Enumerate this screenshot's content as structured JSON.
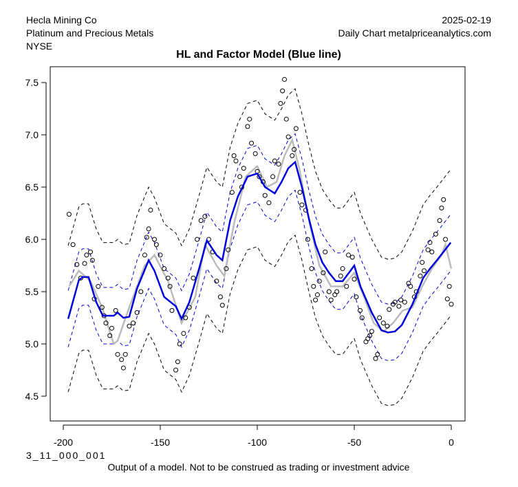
{
  "header": {
    "left": [
      "Hecla Mining Co",
      "Platinum and Precious Metals",
      "NYSE"
    ],
    "right": [
      "2025-02-19",
      "Daily Chart metalpriceanalytics.com"
    ]
  },
  "footer": {
    "code": "3_11_000_001",
    "note": "Output of a model. Not to be construed as trading or investment advice"
  },
  "colors": {
    "model": "#0000DD",
    "smooth": "#BBBBBB",
    "outer": "#000000",
    "points": "#000000"
  },
  "chart_data": {
    "type": "line",
    "title": "HL and Factor Model (Blue line)",
    "xlabel": "",
    "ylabel": "",
    "xlim": [
      -203,
      3
    ],
    "ylim": [
      4.3,
      7.75
    ],
    "xticks": [
      -200,
      -150,
      -100,
      -50,
      0
    ],
    "xtick_labels": [
      "-200",
      "-150",
      "-100",
      "-50",
      "0"
    ],
    "yticks": [
      4.5,
      5.0,
      5.5,
      6.0,
      6.5,
      7.0,
      7.5
    ],
    "ytick_labels": [
      "4.5",
      "5.0",
      "5.5",
      "6.0",
      "6.5",
      "7.0",
      "7.5"
    ],
    "grid": false,
    "inner_band_halfwidth": 0.27,
    "outer_band_halfwidth": 0.7,
    "model_line": [
      [
        -197.5,
        5.24
      ],
      [
        -192,
        5.61
      ],
      [
        -190,
        5.64
      ],
      [
        -187,
        5.64
      ],
      [
        -183,
        5.4
      ],
      [
        -179.6,
        5.27
      ],
      [
        -174,
        5.27
      ],
      [
        -172,
        5.3
      ],
      [
        -169,
        5.25
      ],
      [
        -166,
        5.26
      ],
      [
        -162,
        5.53
      ],
      [
        -156,
        5.8
      ],
      [
        -153,
        5.7
      ],
      [
        -148,
        5.45
      ],
      [
        -142,
        5.36
      ],
      [
        -139,
        5.24
      ],
      [
        -135,
        5.4
      ],
      [
        -130,
        5.72
      ],
      [
        -126,
        5.99
      ],
      [
        -121,
        5.85
      ],
      [
        -118,
        5.8
      ],
      [
        -114,
        6.18
      ],
      [
        -110,
        6.41
      ],
      [
        -105,
        6.6
      ],
      [
        -100,
        6.63
      ],
      [
        -96,
        6.5
      ],
      [
        -91,
        6.44
      ],
      [
        -87.5,
        6.55
      ],
      [
        -84,
        6.68
      ],
      [
        -80.5,
        6.74
      ],
      [
        -77,
        6.5
      ],
      [
        -73.4,
        6.2
      ],
      [
        -70,
        5.95
      ],
      [
        -66.5,
        5.78
      ],
      [
        -63,
        5.68
      ],
      [
        -59.5,
        5.6
      ],
      [
        -56,
        5.6
      ],
      [
        -52,
        5.7
      ],
      [
        -50,
        5.75
      ],
      [
        -46.8,
        5.55
      ],
      [
        -41,
        5.3
      ],
      [
        -36,
        5.13
      ],
      [
        -32.6,
        5.11
      ],
      [
        -29,
        5.12
      ],
      [
        -25.5,
        5.18
      ],
      [
        -20,
        5.38
      ],
      [
        -14.5,
        5.63
      ],
      [
        -11,
        5.72
      ],
      [
        -7.4,
        5.8
      ],
      [
        -4,
        5.88
      ],
      [
        -0.3,
        5.97
      ]
    ],
    "smooth_line": [
      [
        -197,
        5.55
      ],
      [
        -192,
        5.7
      ],
      [
        -186,
        5.6
      ],
      [
        -180,
        5.35
      ],
      [
        -174,
        5.0
      ],
      [
        -172,
        5.03
      ],
      [
        -166,
        5.35
      ],
      [
        -158,
        5.75
      ],
      [
        -153,
        5.85
      ],
      [
        -146,
        5.6
      ],
      [
        -139,
        5.2
      ],
      [
        -132,
        5.45
      ],
      [
        -127,
        5.95
      ],
      [
        -121,
        5.75
      ],
      [
        -117,
        5.65
      ],
      [
        -112,
        6.15
      ],
      [
        -106,
        6.6
      ],
      [
        -100,
        6.7
      ],
      [
        -95,
        6.5
      ],
      [
        -90,
        6.55
      ],
      [
        -86,
        6.8
      ],
      [
        -82,
        6.95
      ],
      [
        -78,
        6.65
      ],
      [
        -73,
        6.15
      ],
      [
        -68,
        5.75
      ],
      [
        -62,
        5.55
      ],
      [
        -56,
        5.55
      ],
      [
        -50,
        5.68
      ],
      [
        -45,
        5.45
      ],
      [
        -40,
        5.2
      ],
      [
        -35,
        5.12
      ],
      [
        -30,
        5.2
      ],
      [
        -25,
        5.32
      ],
      [
        -20,
        5.35
      ],
      [
        -15,
        5.55
      ],
      [
        -10,
        5.72
      ],
      [
        -5,
        5.85
      ],
      [
        -3,
        5.95
      ],
      [
        0,
        5.72
      ]
    ],
    "points": [
      [
        -197,
        6.24
      ],
      [
        -195,
        5.95
      ],
      [
        -193,
        5.76
      ],
      [
        -191,
        5.63
      ],
      [
        -189,
        5.77
      ],
      [
        -188,
        5.85
      ],
      [
        -186,
        5.88
      ],
      [
        -185,
        5.8
      ],
      [
        -184,
        5.43
      ],
      [
        -182,
        5.55
      ],
      [
        -180,
        5.35
      ],
      [
        -179,
        5.27
      ],
      [
        -178,
        5.2
      ],
      [
        -176,
        5.08
      ],
      [
        -175,
        5.15
      ],
      [
        -173,
        5.32
      ],
      [
        -172,
        4.9
      ],
      [
        -170,
        4.85
      ],
      [
        -169,
        4.77
      ],
      [
        -168,
        4.9
      ],
      [
        -166,
        5.17
      ],
      [
        -164,
        5.2
      ],
      [
        -162,
        5.3
      ],
      [
        -160,
        5.5
      ],
      [
        -158,
        5.85
      ],
      [
        -157,
        6.02
      ],
      [
        -156,
        6.1
      ],
      [
        -155,
        6.28
      ],
      [
        -153,
        6.0
      ],
      [
        -152,
        5.95
      ],
      [
        -150,
        5.85
      ],
      [
        -148,
        5.72
      ],
      [
        -146,
        5.63
      ],
      [
        -145,
        5.55
      ],
      [
        -144,
        5.32
      ],
      [
        -142,
        4.75
      ],
      [
        -141,
        4.83
      ],
      [
        -140,
        5.0
      ],
      [
        -138,
        5.1
      ],
      [
        -137,
        5.25
      ],
      [
        -135,
        5.35
      ],
      [
        -133,
        5.63
      ],
      [
        -131,
        6.0
      ],
      [
        -129,
        6.18
      ],
      [
        -127,
        6.22
      ],
      [
        -125,
        6.0
      ],
      [
        -123,
        5.88
      ],
      [
        -121,
        5.6
      ],
      [
        -119,
        5.45
      ],
      [
        -118,
        5.37
      ],
      [
        -116,
        5.72
      ],
      [
        -115,
        5.9
      ],
      [
        -113,
        6.45
      ],
      [
        -112,
        6.8
      ],
      [
        -111,
        6.75
      ],
      [
        -109,
        6.6
      ],
      [
        -108,
        6.5
      ],
      [
        -107,
        6.68
      ],
      [
        -105,
        7.08
      ],
      [
        -104,
        7.15
      ],
      [
        -103,
        6.92
      ],
      [
        -101,
        6.82
      ],
      [
        -100,
        6.65
      ],
      [
        -99,
        6.6
      ],
      [
        -97,
        6.55
      ],
      [
        -96,
        6.42
      ],
      [
        -94,
        6.35
      ],
      [
        -92,
        6.6
      ],
      [
        -91,
        6.75
      ],
      [
        -89,
        6.72
      ],
      [
        -88,
        7.3
      ],
      [
        -87,
        7.42
      ],
      [
        -86,
        7.53
      ],
      [
        -85,
        7.15
      ],
      [
        -84,
        6.98
      ],
      [
        -82,
        6.8
      ],
      [
        -81,
        6.86
      ],
      [
        -80,
        7.06
      ],
      [
        -78,
        6.45
      ],
      [
        -77,
        6.33
      ],
      [
        -75,
        6.28
      ],
      [
        -74,
        6.0
      ],
      [
        -72,
        5.72
      ],
      [
        -71,
        5.55
      ],
      [
        -70,
        5.42
      ],
      [
        -69,
        5.47
      ],
      [
        -68,
        5.6
      ],
      [
        -66,
        5.68
      ],
      [
        -65,
        5.88
      ],
      [
        -63,
        5.5
      ],
      [
        -62,
        5.42
      ],
      [
        -60,
        5.47
      ],
      [
        -59,
        5.5
      ],
      [
        -57,
        5.65
      ],
      [
        -56,
        5.72
      ],
      [
        -54,
        5.55
      ],
      [
        -53,
        5.85
      ],
      [
        -51,
        5.83
      ],
      [
        -50,
        5.62
      ],
      [
        -49,
        5.45
      ],
      [
        -47,
        5.32
      ],
      [
        -46,
        5.25
      ],
      [
        -44,
        5.02
      ],
      [
        -43,
        5.05
      ],
      [
        -42,
        5.08
      ],
      [
        -41,
        5.12
      ],
      [
        -39,
        4.86
      ],
      [
        -38,
        4.9
      ],
      [
        -37,
        5.25
      ],
      [
        -35,
        5.2
      ],
      [
        -33,
        5.17
      ],
      [
        -32,
        5.33
      ],
      [
        -30,
        5.38
      ],
      [
        -29,
        5.4
      ],
      [
        -27,
        5.36
      ],
      [
        -26,
        5.42
      ],
      [
        -24,
        5.4
      ],
      [
        -22,
        5.58
      ],
      [
        -21,
        5.55
      ],
      [
        -19,
        5.45
      ],
      [
        -18,
        5.5
      ],
      [
        -16,
        5.65
      ],
      [
        -15,
        5.78
      ],
      [
        -14,
        5.7
      ],
      [
        -12,
        5.9
      ],
      [
        -11,
        5.97
      ],
      [
        -10,
        5.88
      ],
      [
        -8,
        6.05
      ],
      [
        -6,
        6.18
      ],
      [
        -5,
        6.3
      ],
      [
        -4,
        6.38
      ],
      [
        -3,
        6.0
      ],
      [
        -2,
        5.43
      ],
      [
        -1,
        5.55
      ],
      [
        0,
        5.38
      ]
    ]
  }
}
